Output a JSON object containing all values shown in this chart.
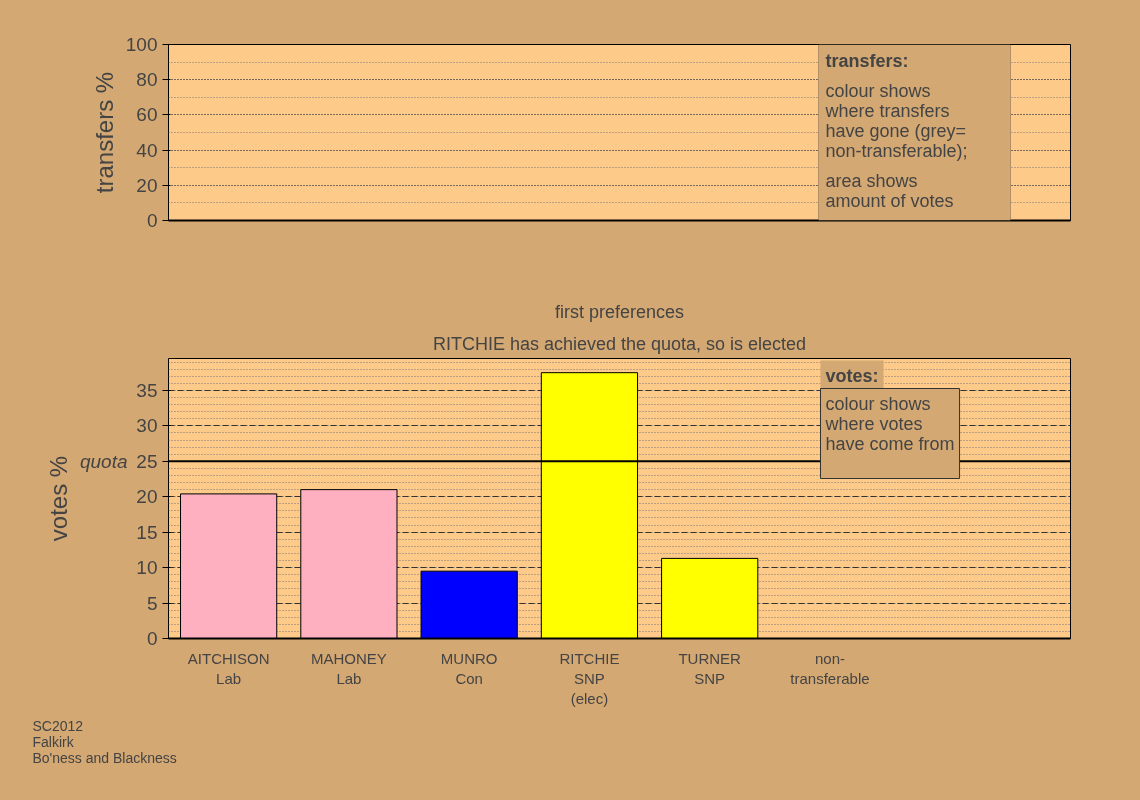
{
  "chart_data": [
    {
      "type": "bar",
      "ylabel": "transfers %",
      "categories": [
        null,
        null,
        null,
        null,
        null,
        null
      ],
      "values": [
        null,
        null,
        null,
        null,
        null,
        null
      ],
      "ylim": [
        0,
        100
      ],
      "yticks": [
        0,
        20,
        40,
        60,
        80,
        100
      ],
      "grid": true,
      "tick_labels": "y",
      "annotations": [
        "transfers:",
        "colour shows\nwhere transfers\nhave gone (grey=\nnon-transferable);",
        "area shows\namount of votes"
      ]
    },
    {
      "type": "bar",
      "title": "first preferences",
      "subtitle": "RITCHIE has achieved the quota, so is elected",
      "ylabel": "votes %",
      "categories": [
        "AITCHISON\nLab",
        "MAHONEY\nLab",
        "MUNRO\nCon",
        "RITCHIE\nSNP\n(elec)",
        "TURNER\nSNP",
        "non-\ntransferable"
      ],
      "values": [
        20.4,
        21.0,
        9.5,
        37.5,
        11.3,
        null
      ],
      "colors": [
        "#ffb0c0",
        "#ffb0c0",
        "#0000ff",
        "#ffff00",
        "#ffff00",
        "#888888"
      ],
      "ylim": [
        0,
        39.5
      ],
      "yticks": [
        0,
        5,
        10,
        15,
        20,
        25,
        30,
        35
      ],
      "grid": true,
      "ref_lines": [
        {
          "axis": "y",
          "value": 25,
          "label": "quota",
          "color": "#000000"
        }
      ],
      "annotations": [
        "votes:",
        "colour shows\nwhere votes\nhave come from",
        "SC2012\nFalkirk\nBo'ness and Blackness"
      ]
    }
  ]
}
